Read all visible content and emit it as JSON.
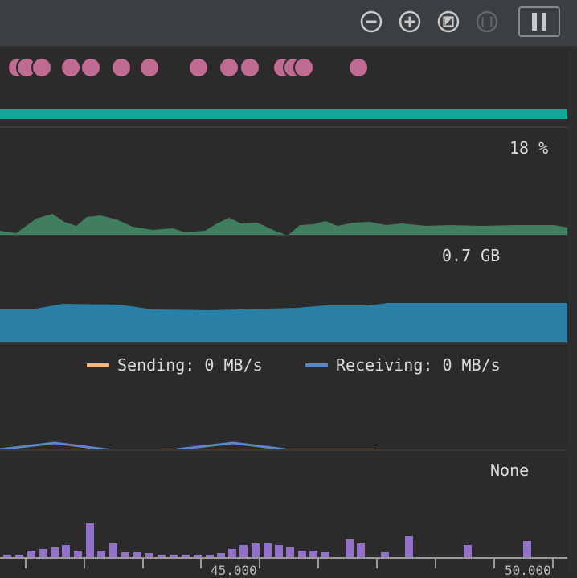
{
  "toolbar": {
    "zoom_out_icon": "zoom-out-icon",
    "zoom_in_icon": "zoom-in-icon",
    "reset_zoom_icon": "reset-zoom-icon",
    "zoom_to_selection_icon": "zoom-to-selection-icon",
    "pause_icon": "pause-icon"
  },
  "colors": {
    "event_dot": "#c06c92",
    "session_bar": "#16a596",
    "cpu_fill": "#3f7f60",
    "memory_fill": "#2a7fa6",
    "network_receiving": "#5b86c8",
    "network_sending": "#f2b880",
    "energy_bar": "#9471c8"
  },
  "cpu": {
    "readout": "18 %"
  },
  "memory": {
    "readout": "0.7 GB"
  },
  "network": {
    "sending_label": "Sending: 0 MB/s",
    "receiving_label": "Receiving: 0 MB/s"
  },
  "energy": {
    "readout": "None"
  },
  "timeline": {
    "tick_labels": [
      "45.000",
      "50.000"
    ]
  }
}
